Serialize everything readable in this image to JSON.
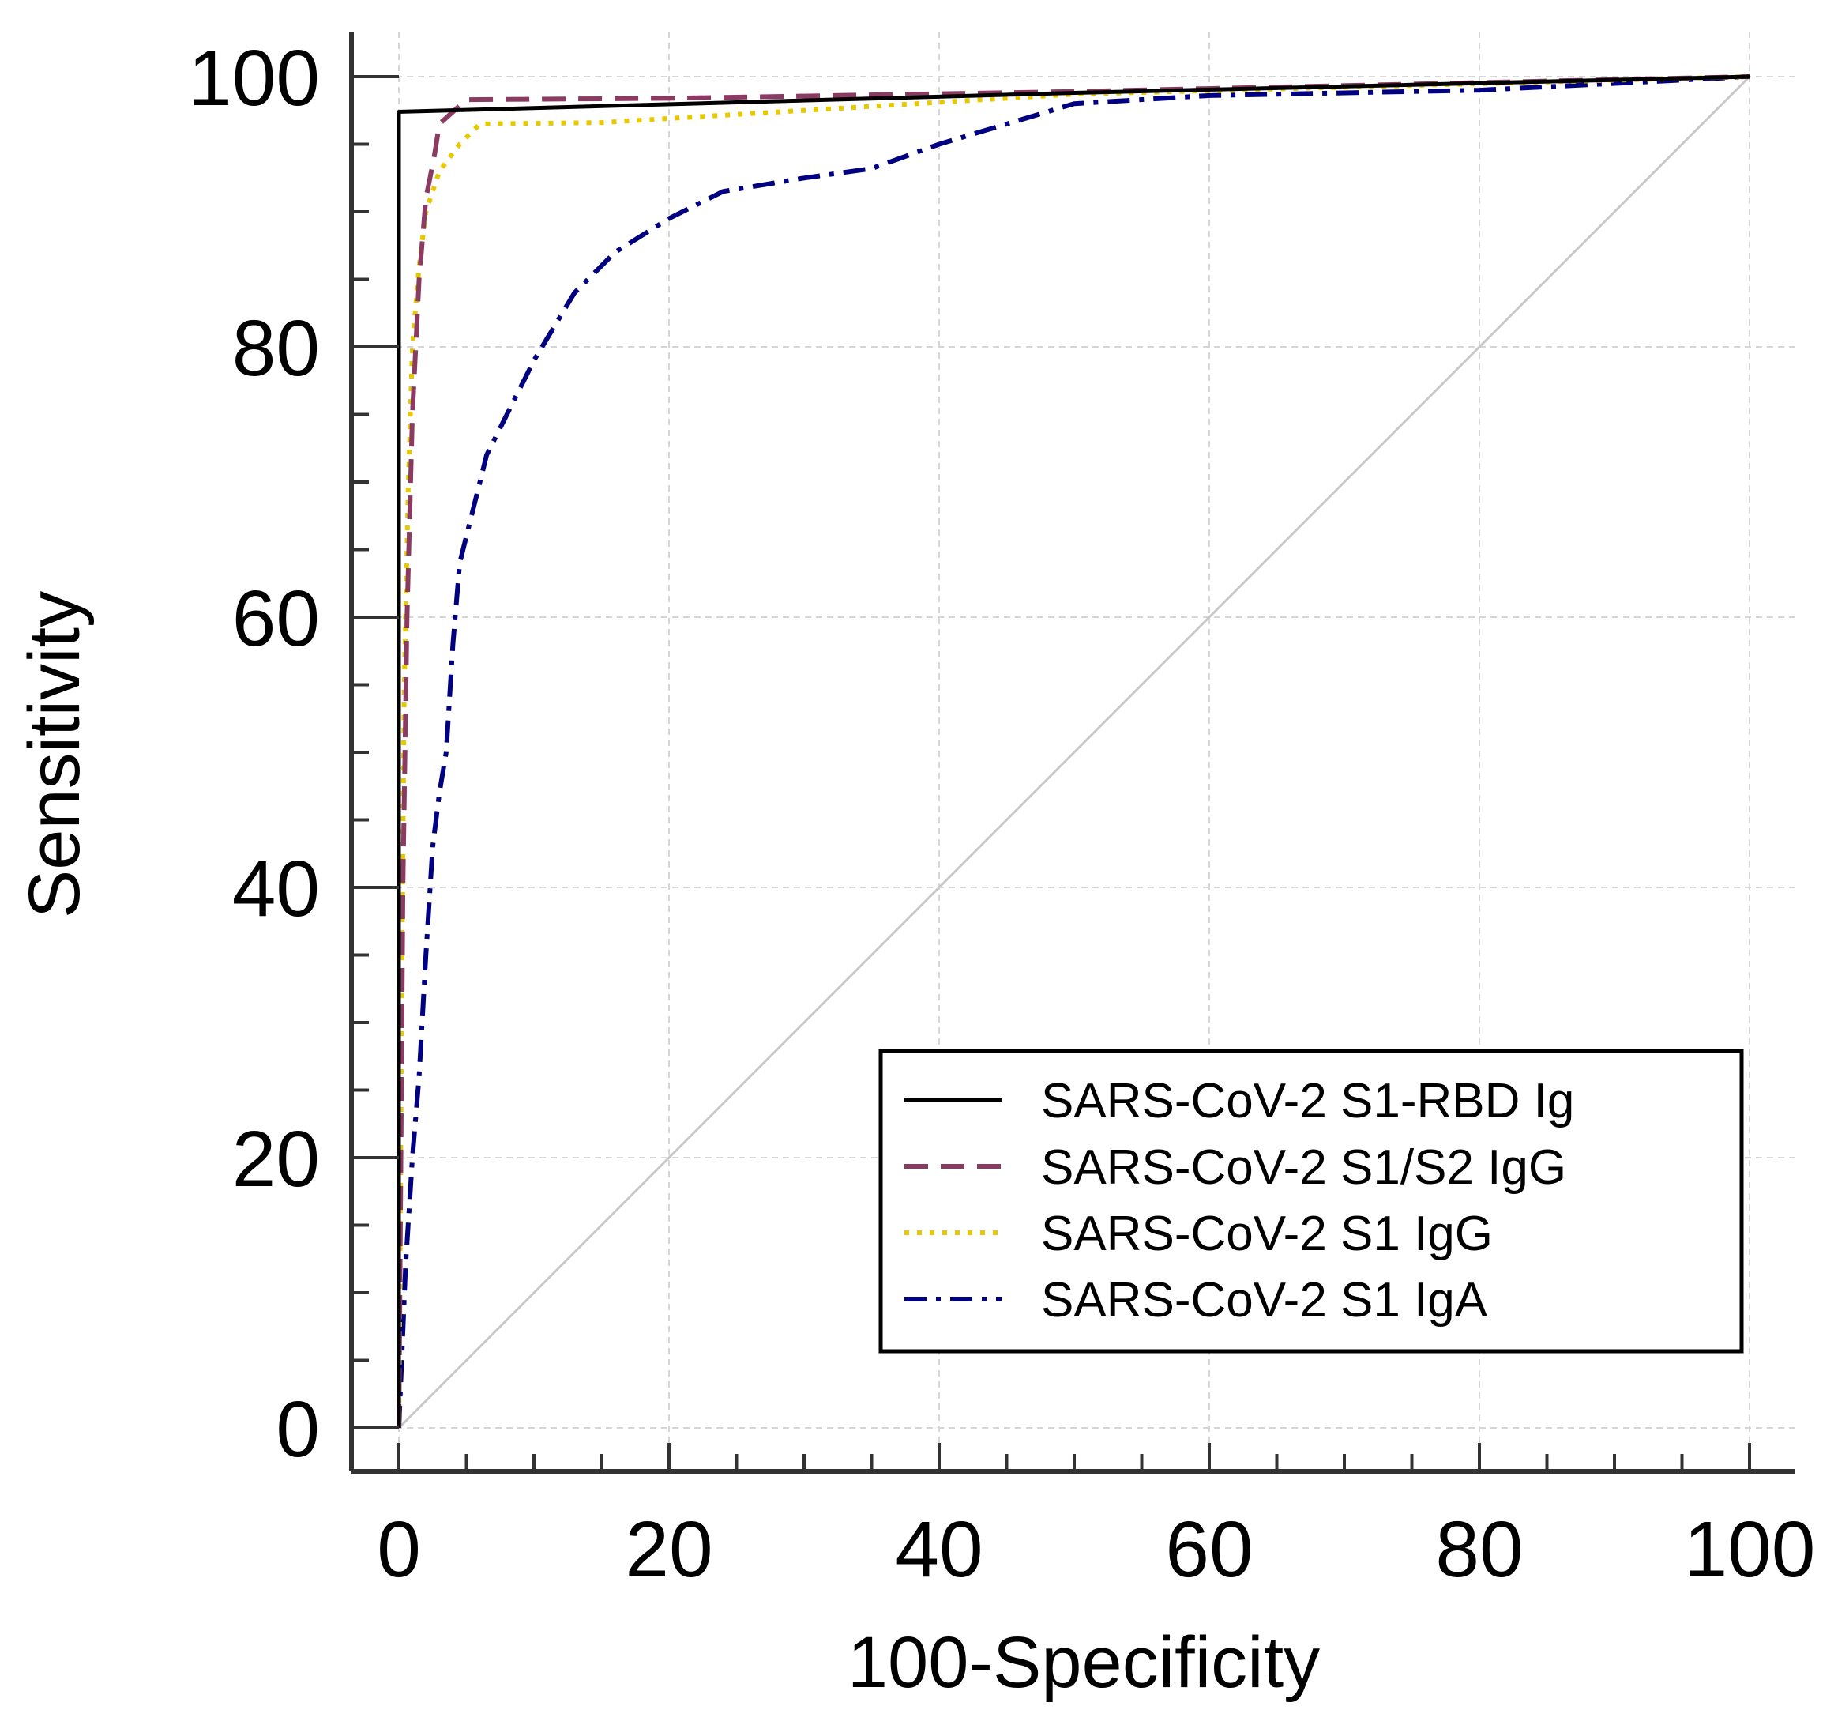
{
  "chart_data": {
    "type": "line",
    "title": "",
    "xlabel": "100-Specificity",
    "ylabel": "Sensitivity",
    "xlim": [
      0,
      100
    ],
    "ylim": [
      0,
      100
    ],
    "x_ticks": [
      0,
      20,
      40,
      60,
      80,
      100
    ],
    "y_ticks": [
      0,
      20,
      40,
      60,
      80,
      100
    ],
    "x_tick_labels": [
      "0",
      "20",
      "40",
      "60",
      "80",
      "100"
    ],
    "y_tick_labels": [
      "0",
      "20",
      "40",
      "60",
      "80",
      "100"
    ],
    "grid": true,
    "legend_position": "bottom-right",
    "reference_line": {
      "x": [
        0,
        100
      ],
      "y": [
        0,
        100
      ],
      "color": "#c8c8c8"
    },
    "series": [
      {
        "name": "SARS-CoV-2 S1-RBD Ig",
        "color": "#000000",
        "dash": "solid",
        "x": [
          0,
          0,
          50,
          100
        ],
        "y": [
          0,
          97.4,
          98.8,
          100
        ]
      },
      {
        "name": "SARS-CoV-2 S1/S2 IgG",
        "color": "#8b3a62",
        "dash": "dashed",
        "x": [
          0,
          0.3,
          0.6,
          1.0,
          1.5,
          2.0,
          2.6,
          3.0,
          5.0,
          20,
          50,
          100
        ],
        "y": [
          0,
          40,
          60,
          75,
          85,
          91,
          94,
          96.5,
          98.3,
          98.4,
          98.9,
          100
        ]
      },
      {
        "name": "SARS-CoV-2 S1 IgG",
        "color": "#e8c800",
        "dash": "dotted",
        "x": [
          0,
          0.2,
          0.4,
          0.7,
          1.0,
          1.5,
          2.0,
          3.0,
          4.5,
          6.0,
          15,
          50,
          100
        ],
        "y": [
          0,
          30,
          55,
          70,
          80,
          86,
          90,
          93,
          95,
          96.5,
          96.6,
          98.7,
          100
        ]
      },
      {
        "name": "SARS-CoV-2 S1 IgA",
        "color": "#000080",
        "dash": "dashdot",
        "x": [
          0,
          0.5,
          1.0,
          1.5,
          2.0,
          2.5,
          3.0,
          3.5,
          4.0,
          4.5,
          5.0,
          6.0,
          6.5,
          8.0,
          10,
          13,
          16,
          20,
          24,
          30,
          35,
          40,
          45,
          50,
          60,
          80,
          100
        ],
        "y": [
          0,
          12,
          20,
          26,
          35,
          43,
          47,
          50,
          58,
          64,
          66,
          70,
          72,
          75,
          79,
          84,
          87,
          89.5,
          91.5,
          92.5,
          93.2,
          95,
          96.5,
          98,
          98.6,
          99,
          100
        ]
      }
    ]
  }
}
